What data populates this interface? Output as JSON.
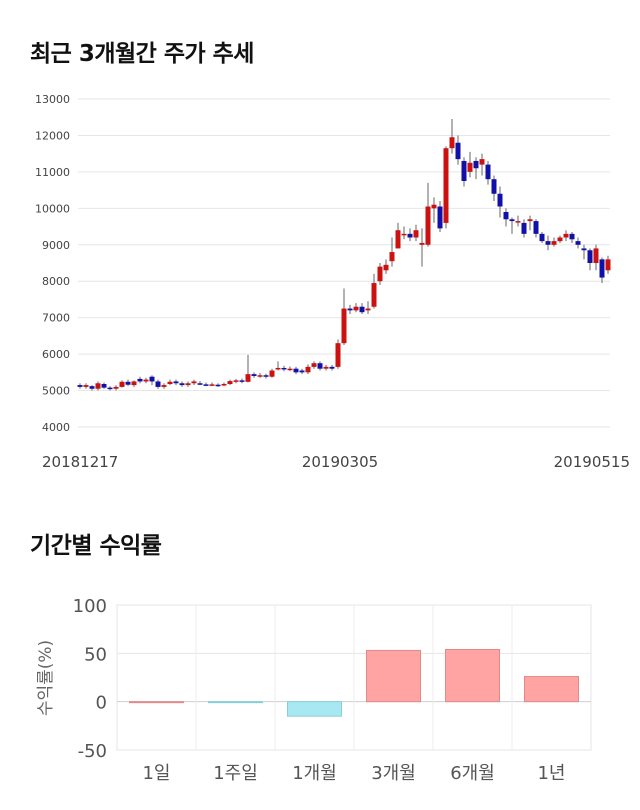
{
  "section1_title": "최근 3개월간 주가 추세",
  "section2_title": "기간별 수익률",
  "chart_data": [
    {
      "type": "candlestick",
      "y_ticks": [
        "13000",
        "12000",
        "11000",
        "10000",
        "9000",
        "8000",
        "7000",
        "6000",
        "5000",
        "4000"
      ],
      "ylim": [
        4000,
        13000
      ],
      "x_labels": [
        "20181217",
        "20190305",
        "20190515"
      ],
      "up_color": "#cc1111",
      "down_color": "#1111aa",
      "candles": [
        [
          5150,
          5100,
          5200,
          5050
        ],
        [
          5100,
          5150,
          5200,
          5050
        ],
        [
          5120,
          5050,
          5150,
          5000
        ],
        [
          5050,
          5200,
          5250,
          5000
        ],
        [
          5180,
          5080,
          5220,
          5050
        ],
        [
          5080,
          5050,
          5120,
          5000
        ],
        [
          5050,
          5100,
          5150,
          5000
        ],
        [
          5100,
          5240,
          5280,
          5080
        ],
        [
          5240,
          5160,
          5300,
          5120
        ],
        [
          5150,
          5250,
          5280,
          5100
        ],
        [
          5320,
          5250,
          5380,
          5200
        ],
        [
          5250,
          5300,
          5350,
          5200
        ],
        [
          5380,
          5250,
          5420,
          5150
        ],
        [
          5250,
          5100,
          5300,
          5050
        ],
        [
          5100,
          5150,
          5200,
          5050
        ],
        [
          5180,
          5240,
          5300,
          5150
        ],
        [
          5250,
          5200,
          5300,
          5150
        ],
        [
          5200,
          5150,
          5250,
          5100
        ],
        [
          5150,
          5200,
          5250,
          5100
        ],
        [
          5200,
          5250,
          5300,
          5150
        ],
        [
          5200,
          5180,
          5260,
          5150
        ],
        [
          5170,
          5160,
          5220,
          5120
        ],
        [
          5160,
          5170,
          5220,
          5120
        ],
        [
          5160,
          5140,
          5200,
          5100
        ],
        [
          5140,
          5180,
          5220,
          5120
        ],
        [
          5180,
          5260,
          5300,
          5150
        ],
        [
          5250,
          5280,
          5320,
          5200
        ],
        [
          5280,
          5240,
          5330,
          5200
        ],
        [
          5240,
          5450,
          5980,
          5220
        ],
        [
          5450,
          5400,
          5500,
          5350
        ],
        [
          5400,
          5420,
          5480,
          5350
        ],
        [
          5420,
          5380,
          5460,
          5330
        ],
        [
          5380,
          5550,
          5600,
          5350
        ],
        [
          5600,
          5620,
          5800,
          5550
        ],
        [
          5620,
          5580,
          5680,
          5530
        ],
        [
          5580,
          5600,
          5660,
          5530
        ],
        [
          5600,
          5500,
          5650,
          5450
        ],
        [
          5550,
          5500,
          5600,
          5450
        ],
        [
          5500,
          5650,
          5720,
          5450
        ],
        [
          5650,
          5750,
          5800,
          5600
        ],
        [
          5750,
          5600,
          5800,
          5550
        ],
        [
          5600,
          5650,
          5700,
          5550
        ],
        [
          5650,
          5600,
          5700,
          5550
        ],
        [
          5650,
          6300,
          6400,
          5600
        ],
        [
          6300,
          7250,
          7800,
          6250
        ],
        [
          7250,
          7200,
          7350,
          7100
        ],
        [
          7200,
          7300,
          7400,
          7150
        ],
        [
          7300,
          7150,
          7400,
          7100
        ],
        [
          7200,
          7250,
          7450,
          7100
        ],
        [
          7300,
          7950,
          8200,
          7250
        ],
        [
          8000,
          8400,
          8500,
          7900
        ],
        [
          8300,
          8450,
          8600,
          8200
        ],
        [
          8550,
          8800,
          9200,
          8400
        ],
        [
          8900,
          9400,
          9600,
          8900
        ],
        [
          9300,
          9300,
          9500,
          9150
        ],
        [
          9300,
          9200,
          9450,
          9100
        ],
        [
          9200,
          9400,
          9550,
          9100
        ],
        [
          9000,
          9050,
          9450,
          8400
        ],
        [
          9000,
          10050,
          10700,
          8950
        ],
        [
          10000,
          10100,
          10300,
          9600
        ],
        [
          10050,
          9450,
          10200,
          9350
        ],
        [
          9600,
          11650,
          11700,
          9450
        ],
        [
          11650,
          11950,
          12450,
          11500
        ],
        [
          11800,
          11350,
          12000,
          11200
        ],
        [
          11300,
          10750,
          11400,
          10600
        ],
        [
          11000,
          11250,
          11550,
          10850
        ],
        [
          11300,
          11100,
          11400,
          10800
        ],
        [
          11200,
          11350,
          11500,
          10900
        ],
        [
          11200,
          10800,
          11300,
          10650
        ],
        [
          10800,
          10400,
          10900,
          10200
        ],
        [
          10400,
          10050,
          10600,
          9750
        ],
        [
          9900,
          9700,
          10000,
          9500
        ],
        [
          9700,
          9650,
          9750,
          9300
        ],
        [
          9650,
          9650,
          9800,
          9500
        ],
        [
          9600,
          9300,
          9700,
          9200
        ],
        [
          9650,
          9700,
          9800,
          9400
        ],
        [
          9650,
          9300,
          9700,
          9200
        ],
        [
          9300,
          9100,
          9350,
          9050
        ],
        [
          9100,
          9000,
          9250,
          8850
        ],
        [
          9000,
          9100,
          9200,
          8950
        ],
        [
          9100,
          9200,
          9250,
          9050
        ],
        [
          9200,
          9300,
          9400,
          9100
        ],
        [
          9300,
          9150,
          9350,
          9050
        ],
        [
          9100,
          9000,
          9200,
          8900
        ],
        [
          8900,
          8850,
          9000,
          8600
        ],
        [
          8850,
          8500,
          8900,
          8300
        ],
        [
          8500,
          8900,
          9000,
          8300
        ],
        [
          8600,
          8100,
          8650,
          7950
        ],
        [
          8300,
          8600,
          8700,
          8200
        ]
      ]
    },
    {
      "type": "bar",
      "categories": [
        "1일",
        "1주일",
        "1개월",
        "3개월",
        "6개월",
        "1년"
      ],
      "values": [
        0,
        -1,
        -15,
        53,
        54,
        26
      ],
      "ylabel": "수익률(%)",
      "ylim": [
        -50,
        100
      ],
      "y_ticks": [
        "100",
        "50",
        "0",
        "-50"
      ],
      "pos_color": "#ffa3a3",
      "neg_color": "#a8e8f2"
    }
  ]
}
